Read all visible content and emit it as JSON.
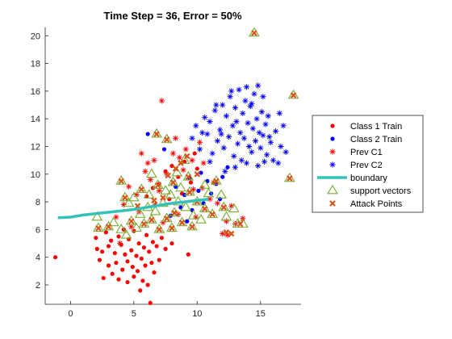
{
  "chart_data": {
    "type": "scatter",
    "title": "Time Step = 36, Error = 50%",
    "xlabel": "",
    "ylabel": "",
    "xlim": [
      -2,
      18.2
    ],
    "ylim": [
      0.6,
      20.6
    ],
    "xticks": [
      0,
      5,
      10,
      15
    ],
    "yticks": [
      2,
      4,
      6,
      8,
      10,
      12,
      14,
      16,
      18,
      20
    ],
    "grid": false,
    "legend_position": "right",
    "colors": {
      "class1": "#ff0000",
      "class2": "#0000ff",
      "prev_c1": "#ff0000",
      "prev_c2": "#0000ff",
      "boundary": "#33c2b8",
      "support": "#77ac30",
      "attack": "#d95319"
    },
    "series": [
      {
        "name": "Class 1 Train",
        "marker": "dot",
        "points": [
          [
            -1.2,
            4.0
          ],
          [
            2.0,
            5.4
          ],
          [
            2.1,
            4.6
          ],
          [
            2.3,
            3.8
          ],
          [
            2.5,
            4.4
          ],
          [
            2.6,
            2.5
          ],
          [
            2.8,
            5.8
          ],
          [
            3.0,
            4.8
          ],
          [
            3.0,
            3.4
          ],
          [
            3.2,
            5.2
          ],
          [
            3.3,
            2.8
          ],
          [
            3.5,
            4.3
          ],
          [
            3.6,
            3.6
          ],
          [
            3.8,
            5.5
          ],
          [
            3.8,
            2.4
          ],
          [
            4.0,
            4.9
          ],
          [
            4.1,
            3.1
          ],
          [
            4.2,
            6.0
          ],
          [
            4.3,
            4.2
          ],
          [
            4.5,
            3.7
          ],
          [
            4.5,
            2.2
          ],
          [
            4.6,
            5.3
          ],
          [
            4.8,
            4.5
          ],
          [
            4.9,
            3.3
          ],
          [
            5.0,
            5.9
          ],
          [
            5.0,
            2.6
          ],
          [
            5.2,
            4.1
          ],
          [
            5.3,
            3.0
          ],
          [
            5.4,
            5.0
          ],
          [
            5.5,
            1.6
          ],
          [
            5.6,
            3.9
          ],
          [
            5.7,
            2.3
          ],
          [
            5.8,
            4.7
          ],
          [
            5.9,
            3.4
          ],
          [
            6.0,
            5.6
          ],
          [
            6.1,
            2.0
          ],
          [
            6.2,
            4.4
          ],
          [
            6.3,
            0.7
          ],
          [
            6.4,
            3.6
          ],
          [
            6.5,
            5.1
          ],
          [
            6.6,
            2.9
          ],
          [
            6.8,
            4.8
          ],
          [
            7.0,
            3.8
          ],
          [
            7.2,
            5.4
          ],
          [
            7.5,
            4.6
          ],
          [
            8.0,
            5.0
          ],
          [
            9.3,
            4.2
          ],
          [
            6.0,
            8.4
          ],
          [
            6.5,
            9.0
          ],
          [
            7.0,
            9.3
          ],
          [
            7.5,
            10.2
          ],
          [
            8.0,
            10.6
          ],
          [
            8.5,
            9.8
          ],
          [
            9.0,
            10.9
          ],
          [
            9.5,
            9.4
          ],
          [
            10.0,
            10.4
          ],
          [
            9.8,
            11.5
          ],
          [
            8.8,
            8.6
          ],
          [
            7.8,
            8.2
          ]
        ]
      },
      {
        "name": "Class 2 Train",
        "marker": "dot",
        "points": [
          [
            6.1,
            12.9
          ],
          [
            7.4,
            11.8
          ],
          [
            8.3,
            9.1
          ],
          [
            9.0,
            8.5
          ],
          [
            9.4,
            9.7
          ],
          [
            10.1,
            8.8
          ],
          [
            10.3,
            10.1
          ],
          [
            10.8,
            9.5
          ],
          [
            11.1,
            8.6
          ],
          [
            11.5,
            9.3
          ],
          [
            12.0,
            9.8
          ],
          [
            8.7,
            7.6
          ],
          [
            9.6,
            7.4
          ],
          [
            10.5,
            7.9
          ],
          [
            7.9,
            7.0
          ],
          [
            9.2,
            6.6
          ],
          [
            11.8,
            8.2
          ],
          [
            12.4,
            10.5
          ]
        ]
      },
      {
        "name": "Prev C1",
        "marker": "asterisk",
        "points": [
          [
            5.6,
            11.5
          ],
          [
            6.6,
            11.0
          ],
          [
            7.2,
            15.3
          ],
          [
            8.3,
            12.6
          ],
          [
            8.6,
            11.2
          ],
          [
            9.1,
            11.8
          ],
          [
            9.6,
            11.0
          ],
          [
            10.2,
            12.3
          ],
          [
            10.5,
            10.8
          ],
          [
            11.3,
            9.4
          ],
          [
            11.6,
            7.9
          ],
          [
            12.3,
            6.6
          ],
          [
            12.7,
            7.7
          ],
          [
            13.0,
            6.4
          ],
          [
            13.6,
            6.8
          ],
          [
            12.0,
            5.7
          ],
          [
            12.4,
            5.6
          ],
          [
            3.6,
            6.9
          ],
          [
            4.6,
            9.1
          ],
          [
            5.2,
            8.5
          ],
          [
            5.9,
            10.2
          ],
          [
            6.3,
            9.6
          ],
          [
            7.0,
            8.8
          ],
          [
            7.6,
            10.0
          ],
          [
            8.1,
            11.5
          ],
          [
            8.9,
            10.3
          ],
          [
            9.7,
            8.9
          ],
          [
            10.4,
            9.0
          ],
          [
            11.0,
            8.2
          ],
          [
            3.9,
            5.0
          ],
          [
            4.8,
            6.2
          ],
          [
            5.4,
            7.3
          ],
          [
            6.7,
            7.8
          ],
          [
            7.3,
            6.5
          ],
          [
            8.5,
            7.1
          ],
          [
            9.9,
            6.9
          ],
          [
            6.1,
            10.8
          ],
          [
            4.2,
            7.8
          ]
        ]
      },
      {
        "name": "Prev C2",
        "marker": "asterisk",
        "points": [
          [
            9.6,
            12.6
          ],
          [
            9.9,
            13.5
          ],
          [
            10.2,
            11.8
          ],
          [
            10.6,
            14.1
          ],
          [
            10.8,
            12.9
          ],
          [
            11.0,
            13.8
          ],
          [
            11.2,
            11.5
          ],
          [
            11.4,
            14.6
          ],
          [
            11.6,
            12.4
          ],
          [
            11.8,
            13.2
          ],
          [
            12.0,
            15.0
          ],
          [
            12.1,
            11.9
          ],
          [
            12.3,
            14.2
          ],
          [
            12.5,
            12.7
          ],
          [
            12.6,
            15.6
          ],
          [
            12.8,
            13.5
          ],
          [
            12.9,
            11.3
          ],
          [
            13.0,
            14.8
          ],
          [
            13.2,
            12.2
          ],
          [
            13.3,
            16.1
          ],
          [
            13.4,
            13.0
          ],
          [
            13.5,
            11.0
          ],
          [
            13.6,
            14.4
          ],
          [
            13.7,
            12.6
          ],
          [
            13.8,
            15.3
          ],
          [
            13.9,
            10.8
          ],
          [
            14.0,
            13.7
          ],
          [
            14.1,
            12.0
          ],
          [
            14.2,
            14.9
          ],
          [
            14.3,
            11.6
          ],
          [
            14.4,
            13.3
          ],
          [
            14.5,
            15.8
          ],
          [
            14.6,
            12.4
          ],
          [
            14.7,
            14.0
          ],
          [
            14.8,
            10.6
          ],
          [
            14.9,
            13.0
          ],
          [
            15.0,
            11.9
          ],
          [
            15.1,
            14.5
          ],
          [
            15.2,
            12.8
          ],
          [
            15.3,
            10.9
          ],
          [
            15.4,
            13.6
          ],
          [
            15.5,
            11.4
          ],
          [
            15.6,
            14.2
          ],
          [
            15.8,
            12.3
          ],
          [
            16.0,
            11.0
          ],
          [
            16.2,
            13.1
          ],
          [
            16.4,
            10.8
          ],
          [
            16.6,
            12.0
          ],
          [
            16.8,
            13.5
          ],
          [
            17.0,
            11.6
          ],
          [
            14.8,
            16.4
          ],
          [
            13.0,
            10.5
          ],
          [
            12.2,
            10.2
          ],
          [
            11.0,
            10.9
          ],
          [
            11.5,
            15.0
          ],
          [
            12.7,
            16.0
          ],
          [
            13.9,
            16.3
          ],
          [
            15.2,
            15.6
          ],
          [
            16.5,
            14.4
          ],
          [
            10.4,
            13.0
          ],
          [
            11.9,
            12.9
          ],
          [
            13.1,
            13.8
          ],
          [
            14.3,
            15.1
          ],
          [
            15.7,
            12.7
          ]
        ]
      },
      {
        "name": "boundary",
        "marker": "line",
        "points": [
          [
            -1.0,
            6.85
          ],
          [
            0.0,
            6.9
          ],
          [
            1.0,
            7.05
          ],
          [
            2.0,
            7.15
          ],
          [
            3.0,
            7.25
          ],
          [
            4.0,
            7.35
          ],
          [
            5.0,
            7.45
          ],
          [
            6.0,
            7.6
          ],
          [
            7.0,
            7.75
          ],
          [
            8.0,
            7.9
          ],
          [
            9.0,
            8.0
          ],
          [
            10.0,
            8.1
          ],
          [
            10.9,
            8.2
          ]
        ]
      },
      {
        "name": "support vectors",
        "marker": "triangle",
        "points": [
          [
            14.5,
            20.2
          ],
          [
            17.6,
            15.7
          ],
          [
            6.8,
            12.9
          ],
          [
            7.6,
            12.5
          ],
          [
            17.3,
            9.7
          ],
          [
            4.0,
            9.5
          ],
          [
            6.4,
            10.0
          ],
          [
            8.4,
            10.1
          ],
          [
            9.0,
            11.0
          ],
          [
            10.6,
            9.2
          ],
          [
            11.9,
            8.5
          ],
          [
            12.9,
            7.5
          ],
          [
            13.6,
            6.4
          ],
          [
            13.2,
            6.4
          ],
          [
            12.3,
            6.9
          ],
          [
            4.3,
            8.3
          ],
          [
            4.6,
            7.9
          ],
          [
            2.1,
            6.9
          ],
          [
            2.2,
            6.1
          ],
          [
            3.0,
            6.2
          ],
          [
            3.4,
            6.5
          ],
          [
            4.0,
            6.0
          ],
          [
            4.4,
            5.6
          ],
          [
            4.8,
            6.6
          ],
          [
            5.2,
            6.1
          ],
          [
            5.5,
            7.1
          ],
          [
            5.8,
            6.4
          ],
          [
            6.1,
            7.6
          ],
          [
            6.4,
            6.7
          ],
          [
            6.7,
            7.3
          ],
          [
            7.0,
            6.0
          ],
          [
            7.3,
            7.9
          ],
          [
            7.6,
            6.8
          ],
          [
            7.9,
            8.5
          ],
          [
            8.2,
            7.2
          ],
          [
            8.5,
            8.0
          ],
          [
            8.8,
            6.5
          ],
          [
            9.1,
            7.6
          ],
          [
            9.4,
            8.7
          ],
          [
            9.7,
            7.0
          ],
          [
            10.0,
            8.0
          ],
          [
            10.3,
            6.7
          ],
          [
            10.6,
            7.5
          ],
          [
            10.9,
            8.6
          ],
          [
            11.2,
            7.1
          ],
          [
            6.9,
            9.2
          ],
          [
            7.5,
            8.8
          ],
          [
            8.1,
            9.4
          ],
          [
            8.7,
            9.0
          ],
          [
            9.3,
            9.8
          ],
          [
            5.0,
            8.3
          ],
          [
            5.6,
            8.9
          ],
          [
            6.2,
            8.5
          ],
          [
            9.6,
            6.2
          ],
          [
            8.0,
            6.1
          ],
          [
            11.5,
            9.5
          ],
          [
            12.1,
            7.6
          ]
        ]
      },
      {
        "name": "Attack Points",
        "marker": "x",
        "points": [
          [
            14.5,
            20.2
          ],
          [
            17.6,
            15.7
          ],
          [
            6.8,
            12.9
          ],
          [
            7.6,
            12.5
          ],
          [
            17.3,
            9.7
          ],
          [
            4.0,
            9.5
          ],
          [
            13.4,
            6.4
          ],
          [
            12.3,
            5.8
          ],
          [
            12.7,
            5.7
          ],
          [
            4.3,
            8.3
          ],
          [
            2.2,
            6.1
          ],
          [
            3.0,
            6.2
          ],
          [
            4.8,
            6.6
          ],
          [
            5.8,
            6.4
          ],
          [
            6.4,
            6.7
          ],
          [
            7.0,
            6.0
          ],
          [
            7.6,
            6.8
          ],
          [
            8.2,
            7.2
          ],
          [
            8.8,
            6.5
          ],
          [
            9.4,
            8.7
          ],
          [
            10.0,
            8.0
          ],
          [
            10.6,
            7.5
          ],
          [
            11.2,
            7.1
          ],
          [
            6.9,
            9.2
          ],
          [
            8.1,
            9.4
          ],
          [
            9.3,
            9.8
          ],
          [
            5.6,
            8.9
          ],
          [
            9.6,
            6.2
          ],
          [
            8.0,
            6.1
          ],
          [
            11.5,
            9.5
          ],
          [
            12.1,
            7.6
          ],
          [
            8.7,
            10.8
          ],
          [
            9.2,
            11.3
          ],
          [
            8.3,
            10.4
          ],
          [
            7.7,
            9.9
          ],
          [
            10.0,
            10.0
          ],
          [
            6.6,
            8.1
          ],
          [
            5.3,
            7.7
          ],
          [
            7.3,
            8.3
          ]
        ]
      }
    ]
  }
}
